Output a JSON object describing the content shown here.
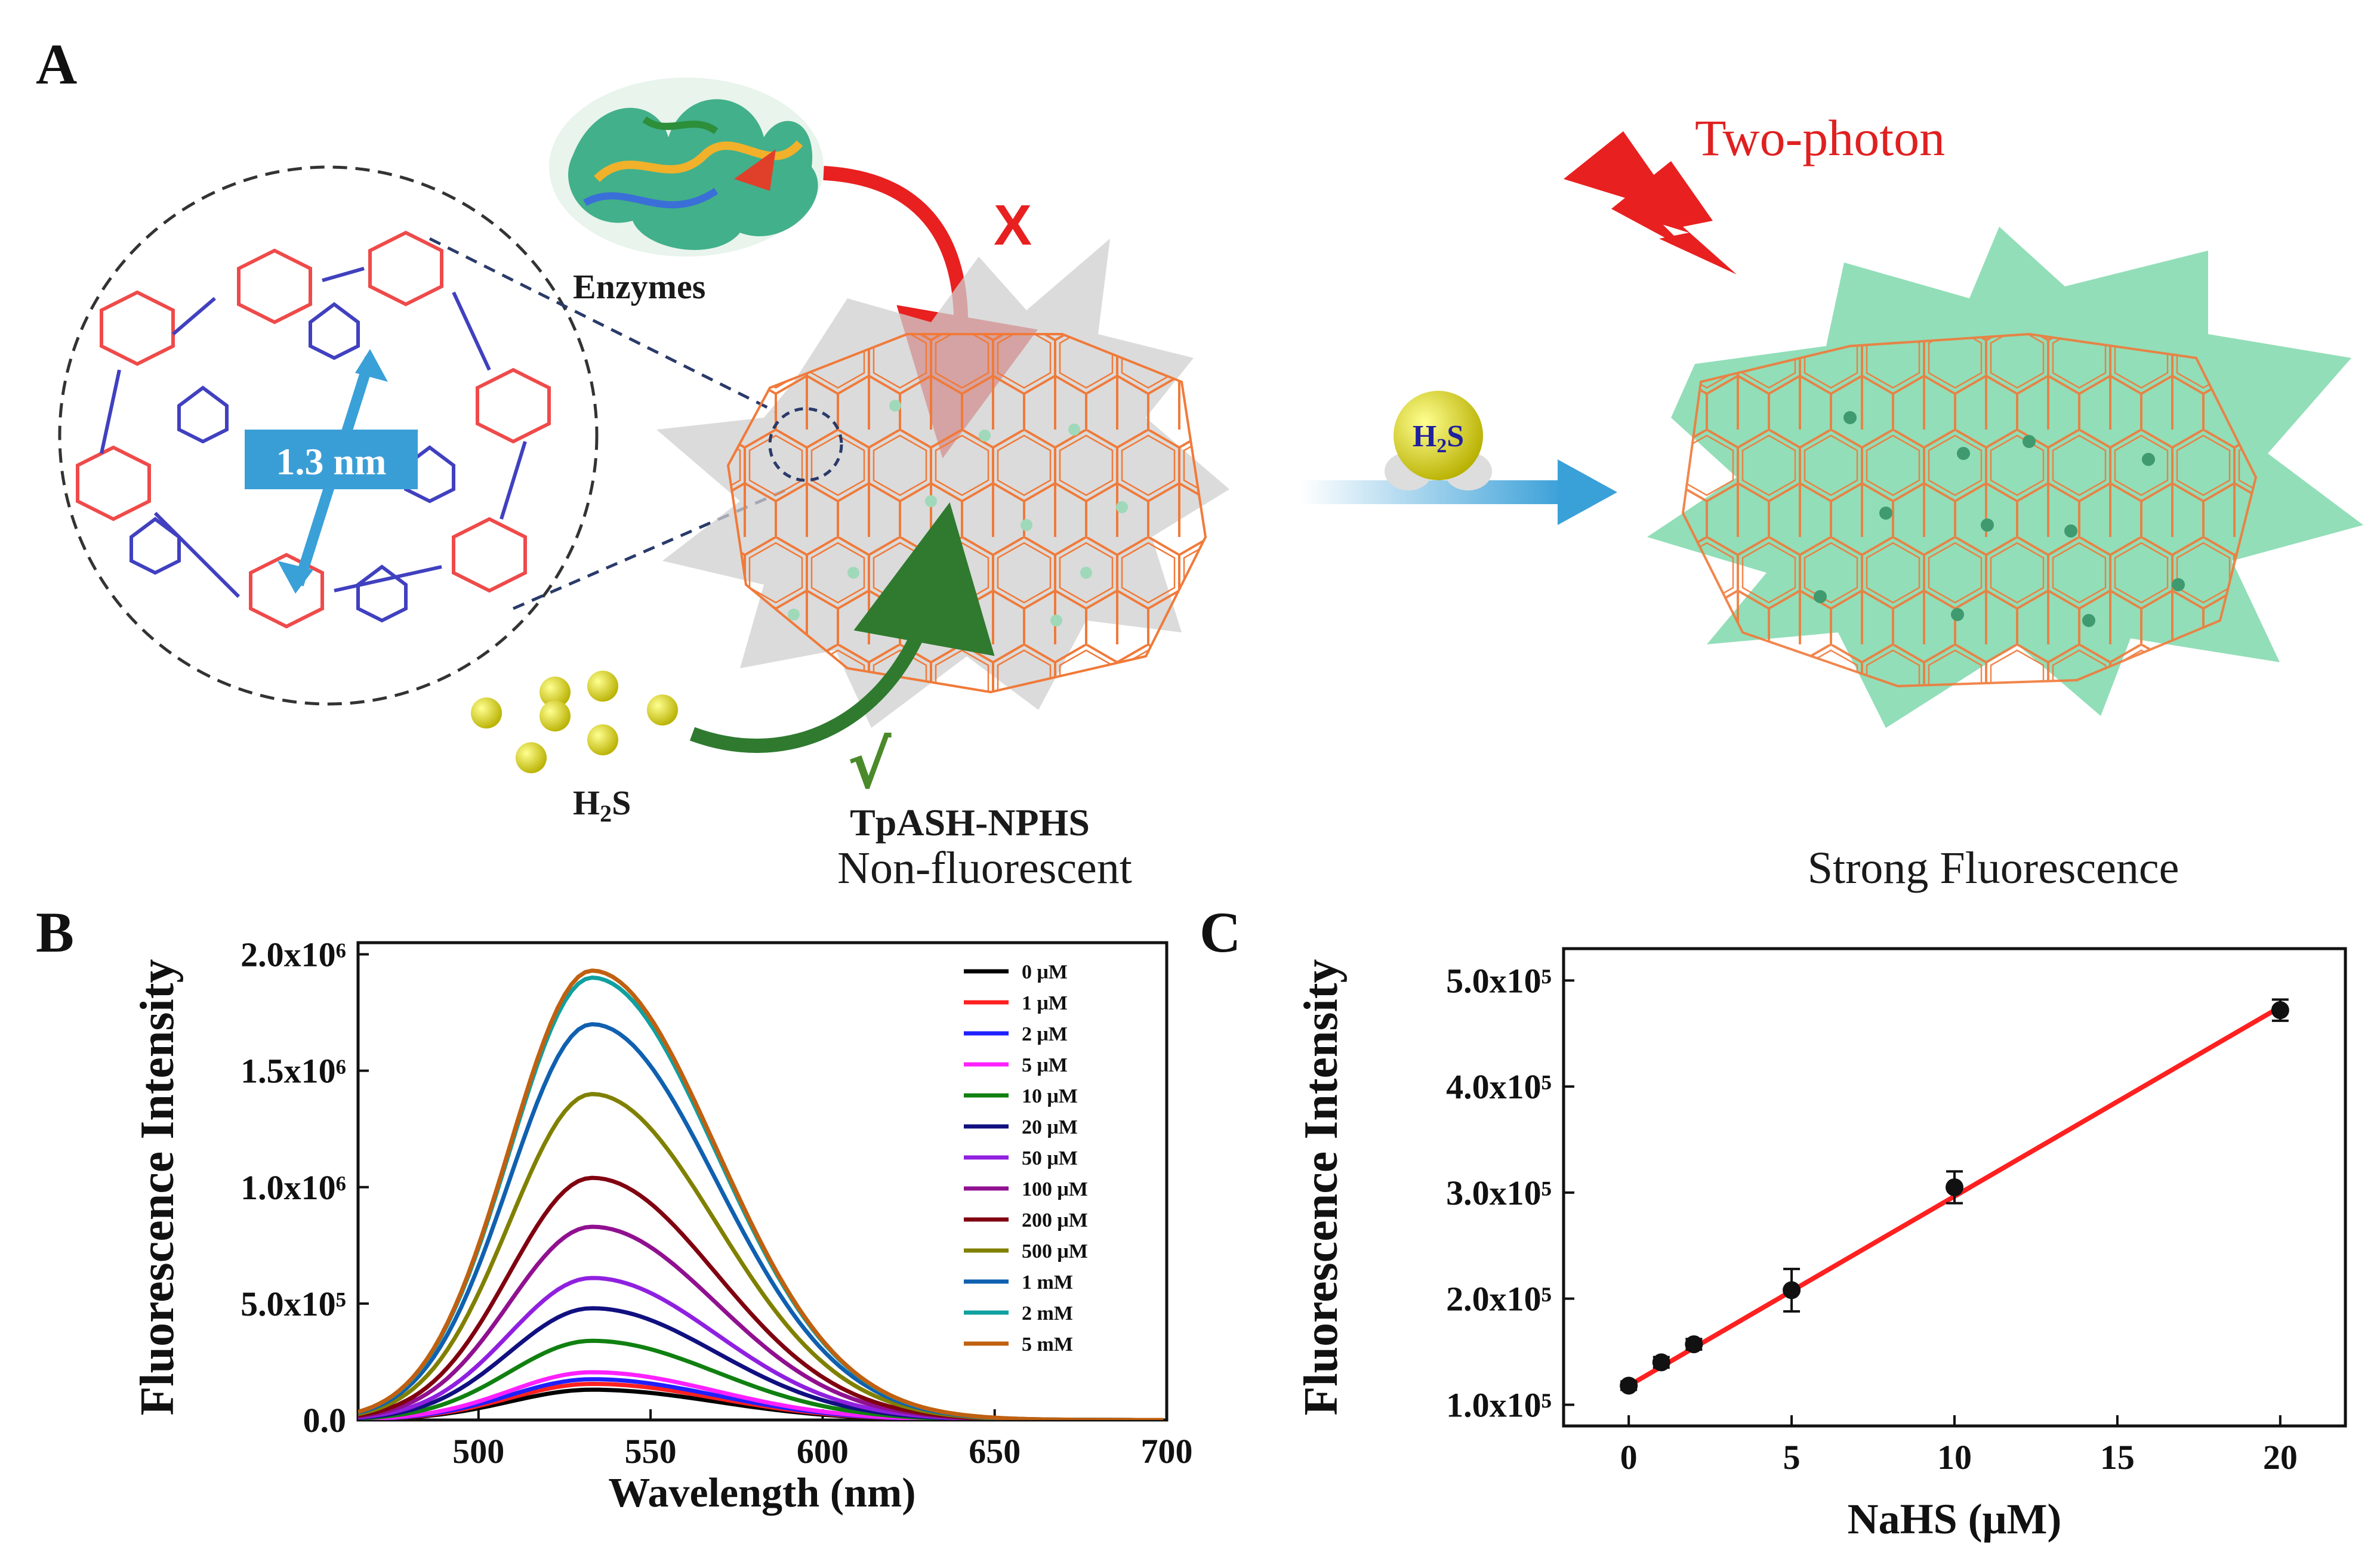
{
  "panel_a": {
    "letter": "A",
    "two_photon_label": "Two-photon",
    "enzymes_label": "Enzymes",
    "blocked_mark": "X",
    "pore_size_label": "1.3 nm",
    "h2s_label": "H2S",
    "h2s_bubble_label": "H2S",
    "accepted_mark": "√",
    "probe_name": "TpASH-NPHS",
    "state_before": "Non-fluorescent",
    "state_after": "Strong Fluorescence",
    "colors": {
      "framework": "#f07a3a",
      "arrow_red": "#e82020",
      "arrow_green": "#2f7a2f",
      "blue_arrow": "#3aa0d8",
      "glow": "#6ed3a0",
      "gray_star": "#cfcfcf",
      "h2s_yellow": "#e8e020"
    }
  },
  "chart_data": [
    {
      "panel": "B",
      "type": "line",
      "title": "",
      "xlabel": "Wavelength (nm)",
      "ylabel": "Fluorescence Intensity",
      "xlim": [
        465,
        700
      ],
      "ylim": [
        0,
        2050000
      ],
      "xticks": [
        "500",
        "550",
        "600",
        "650",
        "700"
      ],
      "xtick_values": [
        500,
        550,
        600,
        650,
        700
      ],
      "yticks": [
        "0.0",
        "5.0x10⁵",
        "1.0x10⁶",
        "1.5x10⁶",
        "2.0x10⁶"
      ],
      "ytick_values": [
        0,
        500000,
        1000000,
        1500000,
        2000000
      ],
      "peak_wavelength": 533,
      "legend_position": "top-right",
      "series": [
        {
          "name": "0 μM",
          "peak": 130000,
          "color": "#000000"
        },
        {
          "name": "1 μM",
          "peak": 155000,
          "color": "#ff2020"
        },
        {
          "name": "2 μM",
          "peak": 175000,
          "color": "#2020ff"
        },
        {
          "name": "5 μM",
          "peak": 205000,
          "color": "#ff20ff"
        },
        {
          "name": "10 μM",
          "peak": 340000,
          "color": "#108010"
        },
        {
          "name": "20 μM",
          "peak": 480000,
          "color": "#101080"
        },
        {
          "name": "50 μM",
          "peak": 610000,
          "color": "#9020e0"
        },
        {
          "name": "100 μM",
          "peak": 830000,
          "color": "#901090"
        },
        {
          "name": "200 μM",
          "peak": 1040000,
          "color": "#800010"
        },
        {
          "name": "500 μM",
          "peak": 1400000,
          "color": "#808000"
        },
        {
          "name": "1 mM",
          "peak": 1700000,
          "color": "#1060b0"
        },
        {
          "name": "2 mM",
          "peak": 1900000,
          "color": "#10a0a0"
        },
        {
          "name": "5 mM",
          "peak": 1930000,
          "color": "#c06010"
        }
      ]
    },
    {
      "panel": "C",
      "type": "scatter",
      "title": "",
      "xlabel": "NaHS (μM)",
      "ylabel": "Fluorescence Intensity",
      "xlim": [
        -2,
        22
      ],
      "ylim": [
        80000,
        530000
      ],
      "xticks": [
        "0",
        "5",
        "10",
        "15",
        "20"
      ],
      "xtick_values": [
        0,
        5,
        10,
        15,
        20
      ],
      "yticks": [
        "1.0x10⁵",
        "2.0x10⁵",
        "3.0x10⁵",
        "4.0x10⁵",
        "5.0x10⁵"
      ],
      "ytick_values": [
        100000,
        200000,
        300000,
        400000,
        500000
      ],
      "points": [
        {
          "x": 0,
          "y": 118000,
          "err": 4000
        },
        {
          "x": 1,
          "y": 140000,
          "err": 5000
        },
        {
          "x": 2,
          "y": 157000,
          "err": 5000
        },
        {
          "x": 5,
          "y": 208000,
          "err": 20000
        },
        {
          "x": 10,
          "y": 305000,
          "err": 15000
        },
        {
          "x": 20,
          "y": 472000,
          "err": 10000
        }
      ],
      "fit_line": {
        "x": [
          0,
          20
        ],
        "y": [
          118000,
          475000
        ],
        "color": "#ff2020"
      }
    }
  ]
}
